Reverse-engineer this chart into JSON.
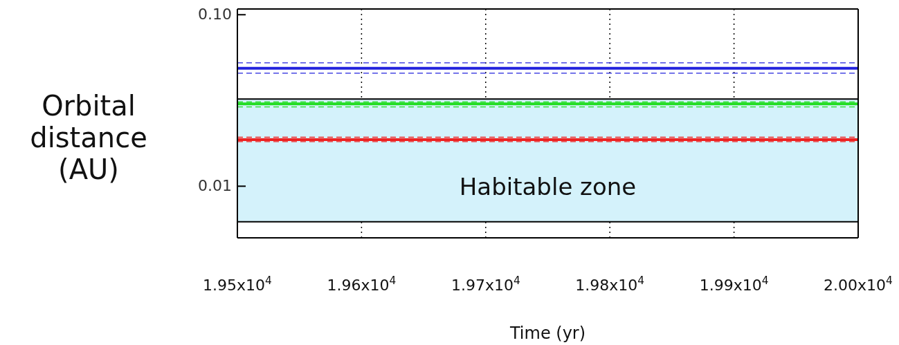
{
  "chart_data": {
    "type": "line",
    "xlabel": "Time (yr)",
    "ylabel": "Orbital distance (AU)",
    "x": [
      19500,
      20000
    ],
    "series": [
      {
        "color": "#2222dd",
        "values": [
          0.0524,
          0.0524
        ],
        "line_style": "dashed"
      },
      {
        "color": "#2222dd",
        "values": [
          0.0487,
          0.0487
        ]
      },
      {
        "color": "#2222dd",
        "values": [
          0.0456,
          0.0456
        ],
        "line_style": "dashed"
      },
      {
        "color": "#22dd22",
        "values": [
          0.031,
          0.031
        ],
        "line_style": "dashed"
      },
      {
        "color": "#22dd22",
        "values": [
          0.0302,
          0.0302
        ]
      },
      {
        "color": "#22dd22",
        "values": [
          0.029,
          0.029
        ],
        "line_style": "dashed"
      },
      {
        "color": "#ee2222",
        "values": [
          0.0193,
          0.0193
        ],
        "line_style": "dashed"
      },
      {
        "color": "#ee2222",
        "values": [
          0.0187,
          0.0187
        ]
      },
      {
        "color": "#ee2222",
        "values": [
          0.0182,
          0.0182
        ],
        "line_style": "dashed"
      }
    ],
    "bands": [
      {
        "axis": "y",
        "from": 0.0062,
        "to": 0.0322,
        "label": "Habitable zone",
        "color": "#d4f2fb"
      }
    ],
    "xlim": [
      19500,
      20000
    ],
    "xticks": [
      {
        "value": 19500,
        "label": "1.95x10$^{4}$"
      },
      {
        "value": 19600,
        "label": "1.96x10$^{4}$"
      },
      {
        "value": 19700,
        "label": "1.97x10$^{4}$"
      },
      {
        "value": 19800,
        "label": "1.98x10$^{4}$"
      },
      {
        "value": 19900,
        "label": "1.99x10$^{4}$"
      },
      {
        "value": 20000,
        "label": "2.00x10$^{4}$"
      }
    ],
    "ylim": [
      0.005,
      0.108
    ],
    "yticks": [
      0.01,
      {
        "value": 0.1,
        "label": "0.10"
      }
    ],
    "log": true,
    "grid": "x",
    "legend": false,
    "line_style": "solid",
    "marker": "none"
  }
}
